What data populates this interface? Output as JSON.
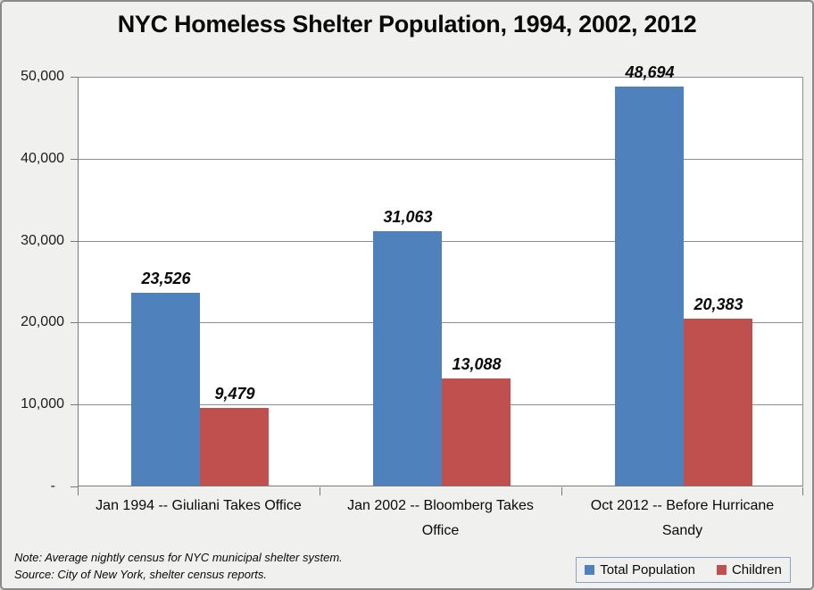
{
  "title": "NYC Homeless Shelter Population, 1994, 2002, 2012",
  "chart_data": {
    "type": "bar",
    "categories": [
      "Jan 1994 -- Giuliani Takes Office",
      "Jan 2002 -- Bloomberg Takes Office",
      "Oct 2012 -- Before Hurricane Sandy"
    ],
    "series": [
      {
        "name": "Total Population",
        "color": "#4F81BD",
        "values": [
          23526,
          31063,
          48694
        ],
        "labels": [
          "23,526",
          "31,063",
          "48,694"
        ]
      },
      {
        "name": "Children",
        "color": "#C0504D",
        "values": [
          9479,
          13088,
          20383
        ],
        "labels": [
          "9,479",
          "13,088",
          "20,383"
        ]
      }
    ],
    "ylim": [
      0,
      50000
    ],
    "yticks": [
      {
        "v": 50000,
        "label": "50,000"
      },
      {
        "v": 40000,
        "label": "40,000"
      },
      {
        "v": 30000,
        "label": "30,000"
      },
      {
        "v": 20000,
        "label": "20,000"
      },
      {
        "v": 10000,
        "label": "10,000"
      },
      {
        "v": 0,
        "label": "-"
      }
    ],
    "grid": true,
    "legend_position": "bottom-right"
  },
  "footnotes": {
    "note": "Note:  Average nightly census for NYC municipal shelter system.",
    "source": "Source:  City of New York, shelter census reports."
  },
  "colors": {
    "background": "#F0F0EF",
    "plot_background": "#FFFFFF",
    "gridline": "#8E8E8E",
    "axis": "#787878",
    "frame_border": "#8A8A8A",
    "legend_border": "#87A3C9",
    "series_total_population": "#4F81BD",
    "series_children": "#C0504D"
  }
}
